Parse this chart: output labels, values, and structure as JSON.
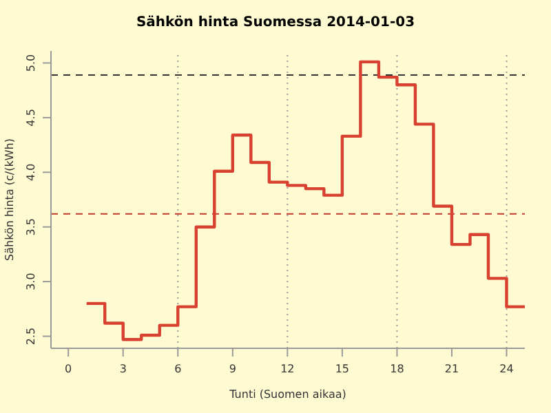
{
  "chart_data": {
    "type": "step",
    "title": "Sähkön hinta Suomessa 2014-01-03",
    "xlabel": "Tunti (Suomen aikaa)",
    "ylabel": "Sähkön hinta (c/(kWh)",
    "x": [
      1,
      2,
      3,
      4,
      5,
      6,
      7,
      8,
      9,
      10,
      11,
      12,
      13,
      14,
      15,
      16,
      17,
      18,
      19,
      20,
      21,
      22,
      23,
      24,
      25
    ],
    "series": [
      {
        "color": "#d8412f",
        "values": [
          2.8,
          2.62,
          2.47,
          2.51,
          2.6,
          2.77,
          3.5,
          4.01,
          4.34,
          4.09,
          3.91,
          3.88,
          3.85,
          3.79,
          4.33,
          5.01,
          4.87,
          4.8,
          4.44,
          3.69,
          3.34,
          3.43,
          3.03,
          2.77,
          2.77
        ]
      }
    ],
    "xlim": [
      -0.95,
      25
    ],
    "xticks": [
      0,
      3,
      6,
      9,
      12,
      15,
      18,
      21,
      24
    ],
    "ylim": [
      2.39,
      5.11
    ],
    "yticks": [
      2.5,
      {
        "value": 3,
        "label": "3.0"
      },
      3.5,
      {
        "value": 4,
        "label": "4.0"
      },
      4.5,
      {
        "value": 5,
        "label": "5.0"
      }
    ],
    "ref_lines": [
      {
        "axis": "y",
        "value": 4.89,
        "color": "#333333",
        "line_style": "dashed"
      },
      {
        "axis": "y",
        "value": 3.62,
        "color": "#c0392b",
        "line_style": "dashed"
      },
      {
        "axis": "x",
        "value": 6,
        "color": "#999999",
        "line_style": "dotted"
      },
      {
        "axis": "x",
        "value": 12,
        "color": "#999999",
        "line_style": "dotted"
      },
      {
        "axis": "x",
        "value": 18,
        "color": "#999999",
        "line_style": "dotted"
      },
      {
        "axis": "x",
        "value": 24,
        "color": "#999999",
        "line_style": "dotted"
      }
    ],
    "legend": false
  }
}
